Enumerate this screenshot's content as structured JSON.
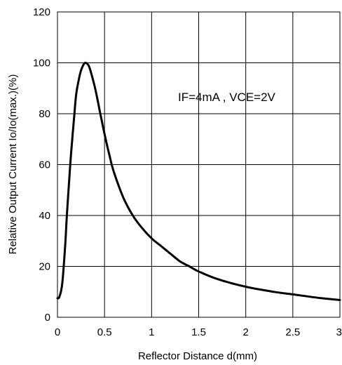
{
  "chart_data": {
    "type": "line",
    "title": "",
    "xlabel": "Reflector Distance d(mm)",
    "ylabel": "Relative Output Current Io/Io(max.)(%)",
    "annotation": "IF=4mA , VCE=2V",
    "xlim": [
      0,
      3
    ],
    "ylim": [
      0,
      120
    ],
    "xticks": [
      0,
      0.5,
      1,
      1.5,
      2,
      2.5,
      3
    ],
    "xtick_labels": [
      "0",
      "0.5",
      "1",
      "1.5",
      "2",
      "2.5",
      "3"
    ],
    "yticks": [
      0,
      20,
      40,
      60,
      80,
      100,
      120
    ],
    "ytick_labels": [
      "0",
      "20",
      "40",
      "60",
      "80",
      "100",
      "120"
    ],
    "grid": true,
    "line_color": "#000000",
    "series": [
      {
        "x": [
          0.0,
          0.02,
          0.05,
          0.08,
          0.1,
          0.13,
          0.15,
          0.18,
          0.2,
          0.23,
          0.25,
          0.28,
          0.3,
          0.33,
          0.35,
          0.4,
          0.45,
          0.5,
          0.55,
          0.6,
          0.7,
          0.8,
          0.9,
          1.0,
          1.1,
          1.2,
          1.3,
          1.4,
          1.5,
          1.7,
          2.0,
          2.3,
          2.5,
          2.8,
          3.0
        ],
        "y": [
          7.5,
          8,
          13,
          27,
          40,
          57,
          67,
          80,
          88,
          94,
          97,
          99.5,
          100,
          99,
          97,
          90,
          81,
          72,
          64,
          57,
          47,
          40,
          35,
          31,
          28,
          25,
          22,
          20,
          18,
          15,
          12,
          10,
          9,
          7.5,
          6.8
        ]
      }
    ]
  }
}
